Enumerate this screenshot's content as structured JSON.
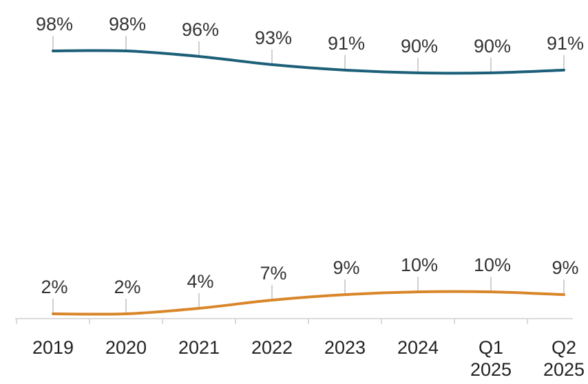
{
  "chart_data": {
    "type": "line",
    "title": "",
    "xlabel": "",
    "ylabel": "",
    "categories": [
      [
        "2019"
      ],
      [
        "2020"
      ],
      [
        "2021"
      ],
      [
        "2022"
      ],
      [
        "2023"
      ],
      [
        "2024"
      ],
      [
        "Q1",
        "2025"
      ],
      [
        "Q2",
        "2025"
      ]
    ],
    "ylim": [
      0,
      100
    ],
    "grid": false,
    "legend": "none",
    "series": [
      {
        "values": [
          98,
          98,
          96,
          93,
          91,
          90,
          90,
          91
        ],
        "labels": [
          "98%",
          "98%",
          "96%",
          "93%",
          "91%",
          "90%",
          "90%",
          "91%"
        ],
        "color": "#1c5f78"
      },
      {
        "values": [
          2,
          2,
          4,
          7,
          9,
          10,
          10,
          9
        ],
        "labels": [
          "2%",
          "2%",
          "4%",
          "7%",
          "9%",
          "10%",
          "10%",
          "9%"
        ],
        "color": "#d9862a"
      }
    ],
    "axis_color": "#cfcfcf",
    "leader_color": "#b0b0b0"
  }
}
